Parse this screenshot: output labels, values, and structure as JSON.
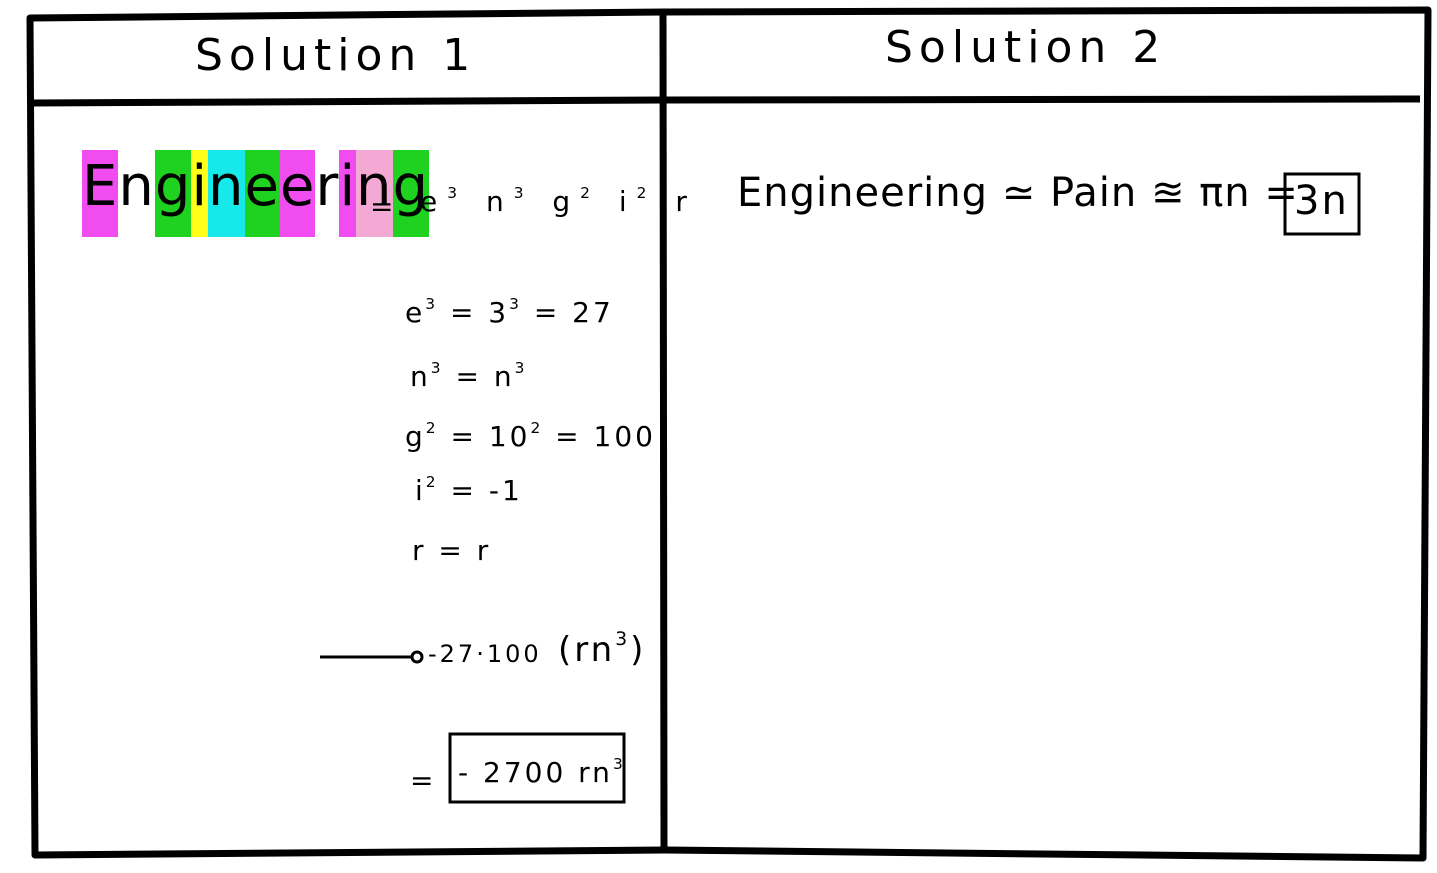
{
  "panels": {
    "left": {
      "title": "Solution 1",
      "word_letters": [
        {
          "ch": "E",
          "color": "#f04cf0"
        },
        {
          "ch": "n",
          "color": "#ffffff"
        },
        {
          "ch": "g",
          "color": "#1fd21f"
        },
        {
          "ch": "i",
          "color": "#ffff19"
        },
        {
          "ch": "n",
          "color": "#17e9ea"
        },
        {
          "ch": "e",
          "color": "#1fd21f"
        },
        {
          "ch": "e",
          "color": "#f04cf0"
        },
        {
          "ch": "r",
          "color": "#ffffff"
        },
        {
          "ch": "i",
          "color": "#f04cf0"
        },
        {
          "ch": "n",
          "color": "#f4a8d4"
        },
        {
          "ch": "g",
          "color": "#1fd21f"
        }
      ],
      "word_equals": "=",
      "product": {
        "e": "e",
        "e_exp": "3",
        "n": "n",
        "n_exp": "3",
        "g": "g",
        "g_exp": "2",
        "i": "i",
        "i_exp": "2",
        "r": "r"
      },
      "steps": [
        {
          "lhs": "e",
          "lhs_exp": "3",
          "rhs": "= 3",
          "rhs_exp": "3",
          "tail": " = 27"
        },
        {
          "lhs": "n",
          "lhs_exp": "3",
          "rhs": "= n",
          "rhs_exp": "3",
          "tail": ""
        },
        {
          "lhs": "g",
          "lhs_exp": "2",
          "rhs": "= 10",
          "rhs_exp": "2",
          "tail": " = 100"
        },
        {
          "lhs": "i",
          "lhs_exp": "2",
          "rhs": "= -1",
          "rhs_exp": "",
          "tail": ""
        },
        {
          "lhs": "r",
          "lhs_exp": "",
          "rhs": "= r",
          "rhs_exp": "",
          "tail": ""
        }
      ],
      "arrow_expr": "-27·100",
      "arrow_paren": "(rn",
      "arrow_paren_exp": "3",
      "arrow_paren_close": ")",
      "final_equals": "=",
      "final_answer": "- 2700 rn",
      "final_answer_exp": "3"
    },
    "right": {
      "title": "Solution 2",
      "equation": "Engineering ≃ Pain ≊ πn =",
      "answer": "3n"
    }
  }
}
